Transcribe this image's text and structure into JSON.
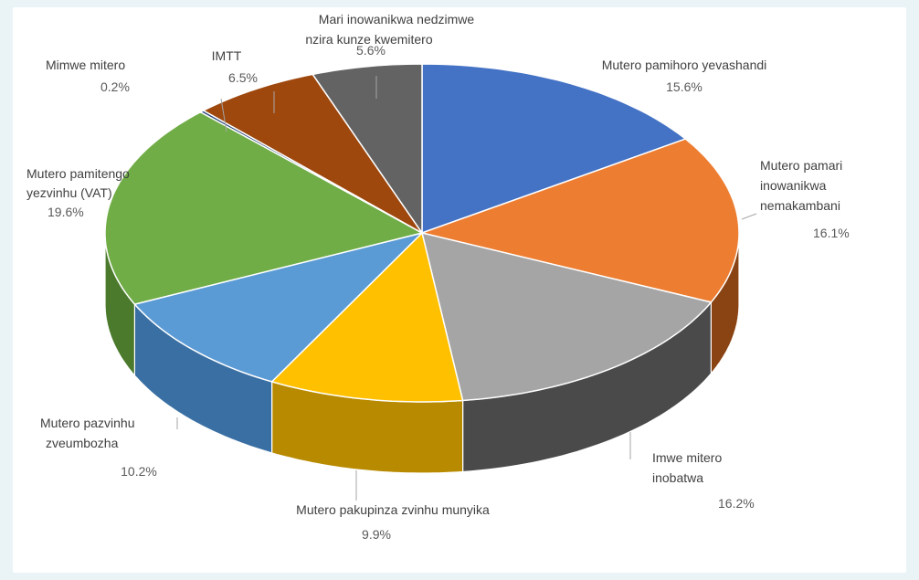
{
  "chart_data": {
    "type": "pie",
    "style": "3d-exploded-perspective",
    "slices": [
      {
        "label": "Mutero pamihoro yevashandi",
        "value_text": "15.6%",
        "value": 15.6,
        "color": "#4472c4",
        "side_color": "#2f528f"
      },
      {
        "label": "Mutero pamari inowanikwa nemakambani",
        "value_text": "16.1%",
        "value": 16.1,
        "color": "#ed7d31",
        "side_color": "#8a4312"
      },
      {
        "label": "Imwe mitero inobatwa",
        "value_text": "16.2%",
        "value": 16.2,
        "color": "#a5a5a5",
        "side_color": "#4a4a4a"
      },
      {
        "label": "Mutero pakupinza zvinhu munyika",
        "value_text": "9.9%",
        "value": 9.9,
        "color": "#ffc000",
        "side_color": "#b88a00"
      },
      {
        "label": "Mutero pazvinhu zveumbozha",
        "value_text": "10.2%",
        "value": 10.2,
        "color": "#5b9bd5",
        "side_color": "#3a6fa3"
      },
      {
        "label": "Mutero pamitengo yezvinhu (VAT)",
        "value_text": "19.6%",
        "value": 19.6,
        "color": "#70ad47",
        "side_color": "#4b7a2d"
      },
      {
        "label": "Mimwe mitero",
        "value_text": "0.2%",
        "value": 0.2,
        "color": "#264478",
        "side_color": "#1a2f55"
      },
      {
        "label": "IMTT",
        "value_text": "6.5%",
        "value": 6.5,
        "color": "#9e480e",
        "side_color": "#5e2a08"
      },
      {
        "label": "Mari inowanikwa nedzimwe nzira kunze kwemitero",
        "value_text": "5.6%",
        "value": 5.6,
        "color": "#636363",
        "side_color": "#3a3a3a"
      }
    ],
    "start_angle_deg": 0,
    "direction": "clockwise"
  }
}
